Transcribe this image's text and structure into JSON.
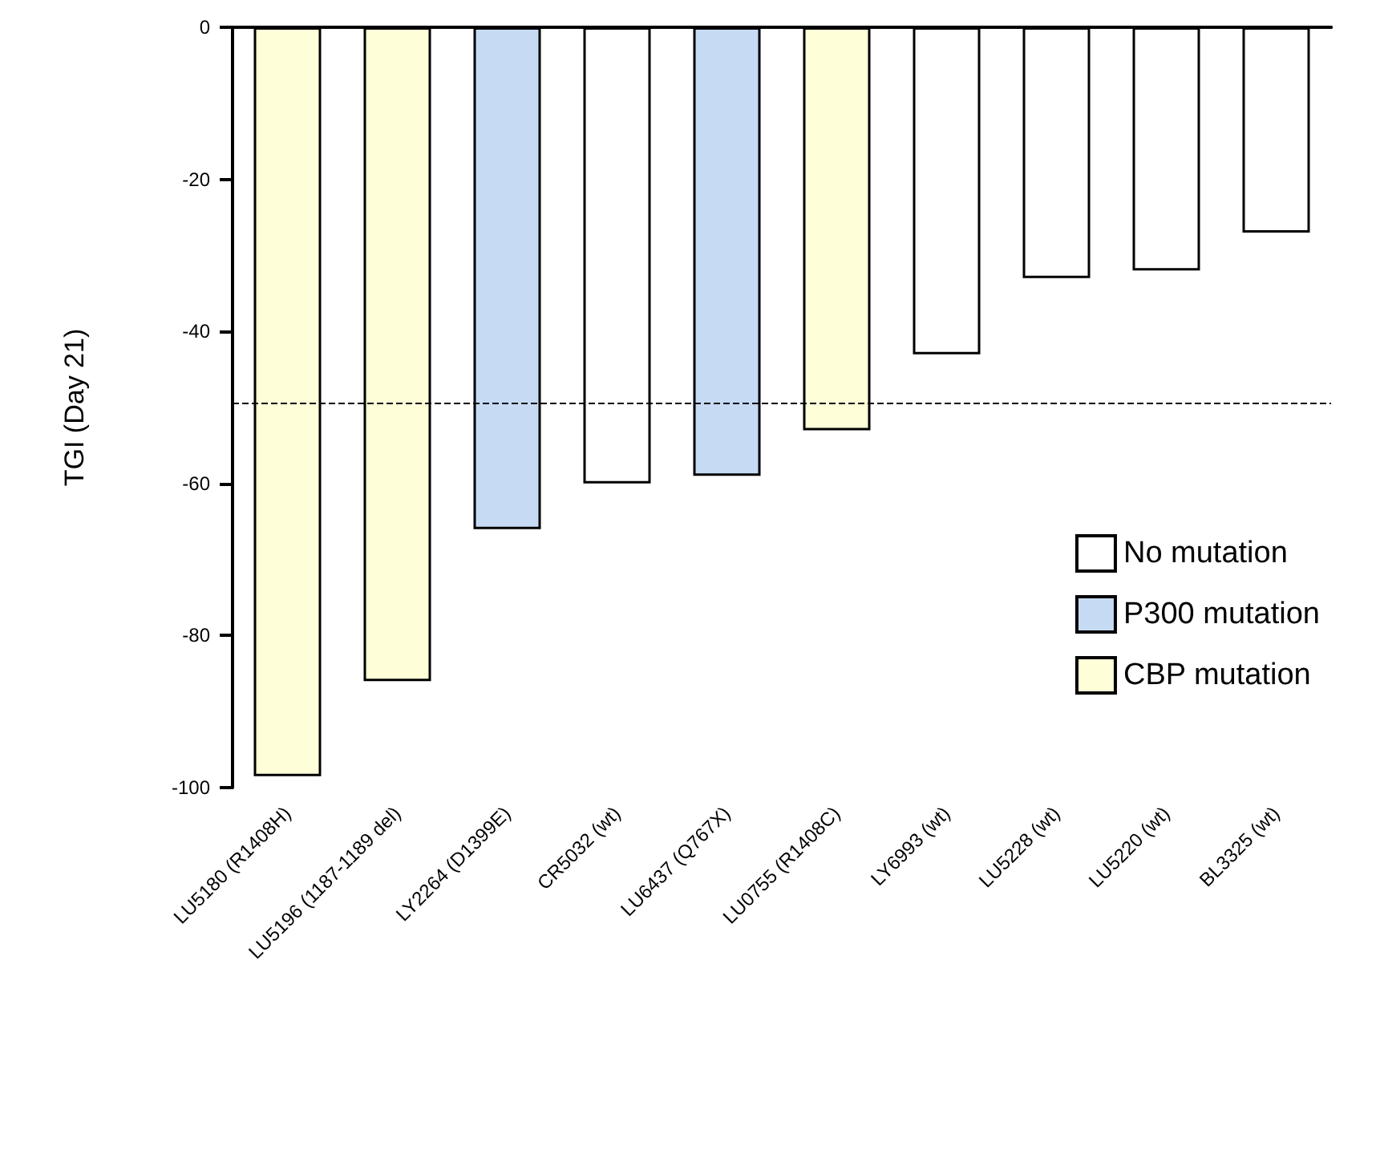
{
  "chart_data": {
    "type": "bar",
    "ylabel": "TGI (Day 21)",
    "categories": [
      "LU5180 (R1408H)",
      "LU5196 (1187-1189 del)",
      "LY2264 (D1399E)",
      "CR5032 (wt)",
      "LU6437 (Q767X)",
      "LU0755 (R1408C)",
      "LY6993 (wt)",
      "LU5228 (wt)",
      "LU5220 (wt)",
      "BL3325 (wt)"
    ],
    "series": [
      {
        "name": "No mutation",
        "color": "#ffffff",
        "values": [
          null,
          null,
          null,
          -60,
          null,
          null,
          -43,
          -33,
          -32,
          -27
        ]
      },
      {
        "name": "P300 mutation",
        "color": "#c6daf4",
        "values": [
          null,
          null,
          -66,
          null,
          -59,
          null,
          null,
          null,
          null,
          null
        ]
      },
      {
        "name": "CBP mutation",
        "color": "#fefed8",
        "values": [
          -98.5,
          -86,
          null,
          null,
          null,
          -53,
          null,
          null,
          null,
          null
        ]
      }
    ],
    "ylim": [
      -100,
      0
    ],
    "yticks": [
      -100,
      -80,
      -60,
      -40,
      -20,
      0
    ],
    "ref_lines": [
      {
        "axis": "y",
        "value": -49.5,
        "line_style": "dashed"
      }
    ],
    "grid": false,
    "legend": "bottom right"
  }
}
